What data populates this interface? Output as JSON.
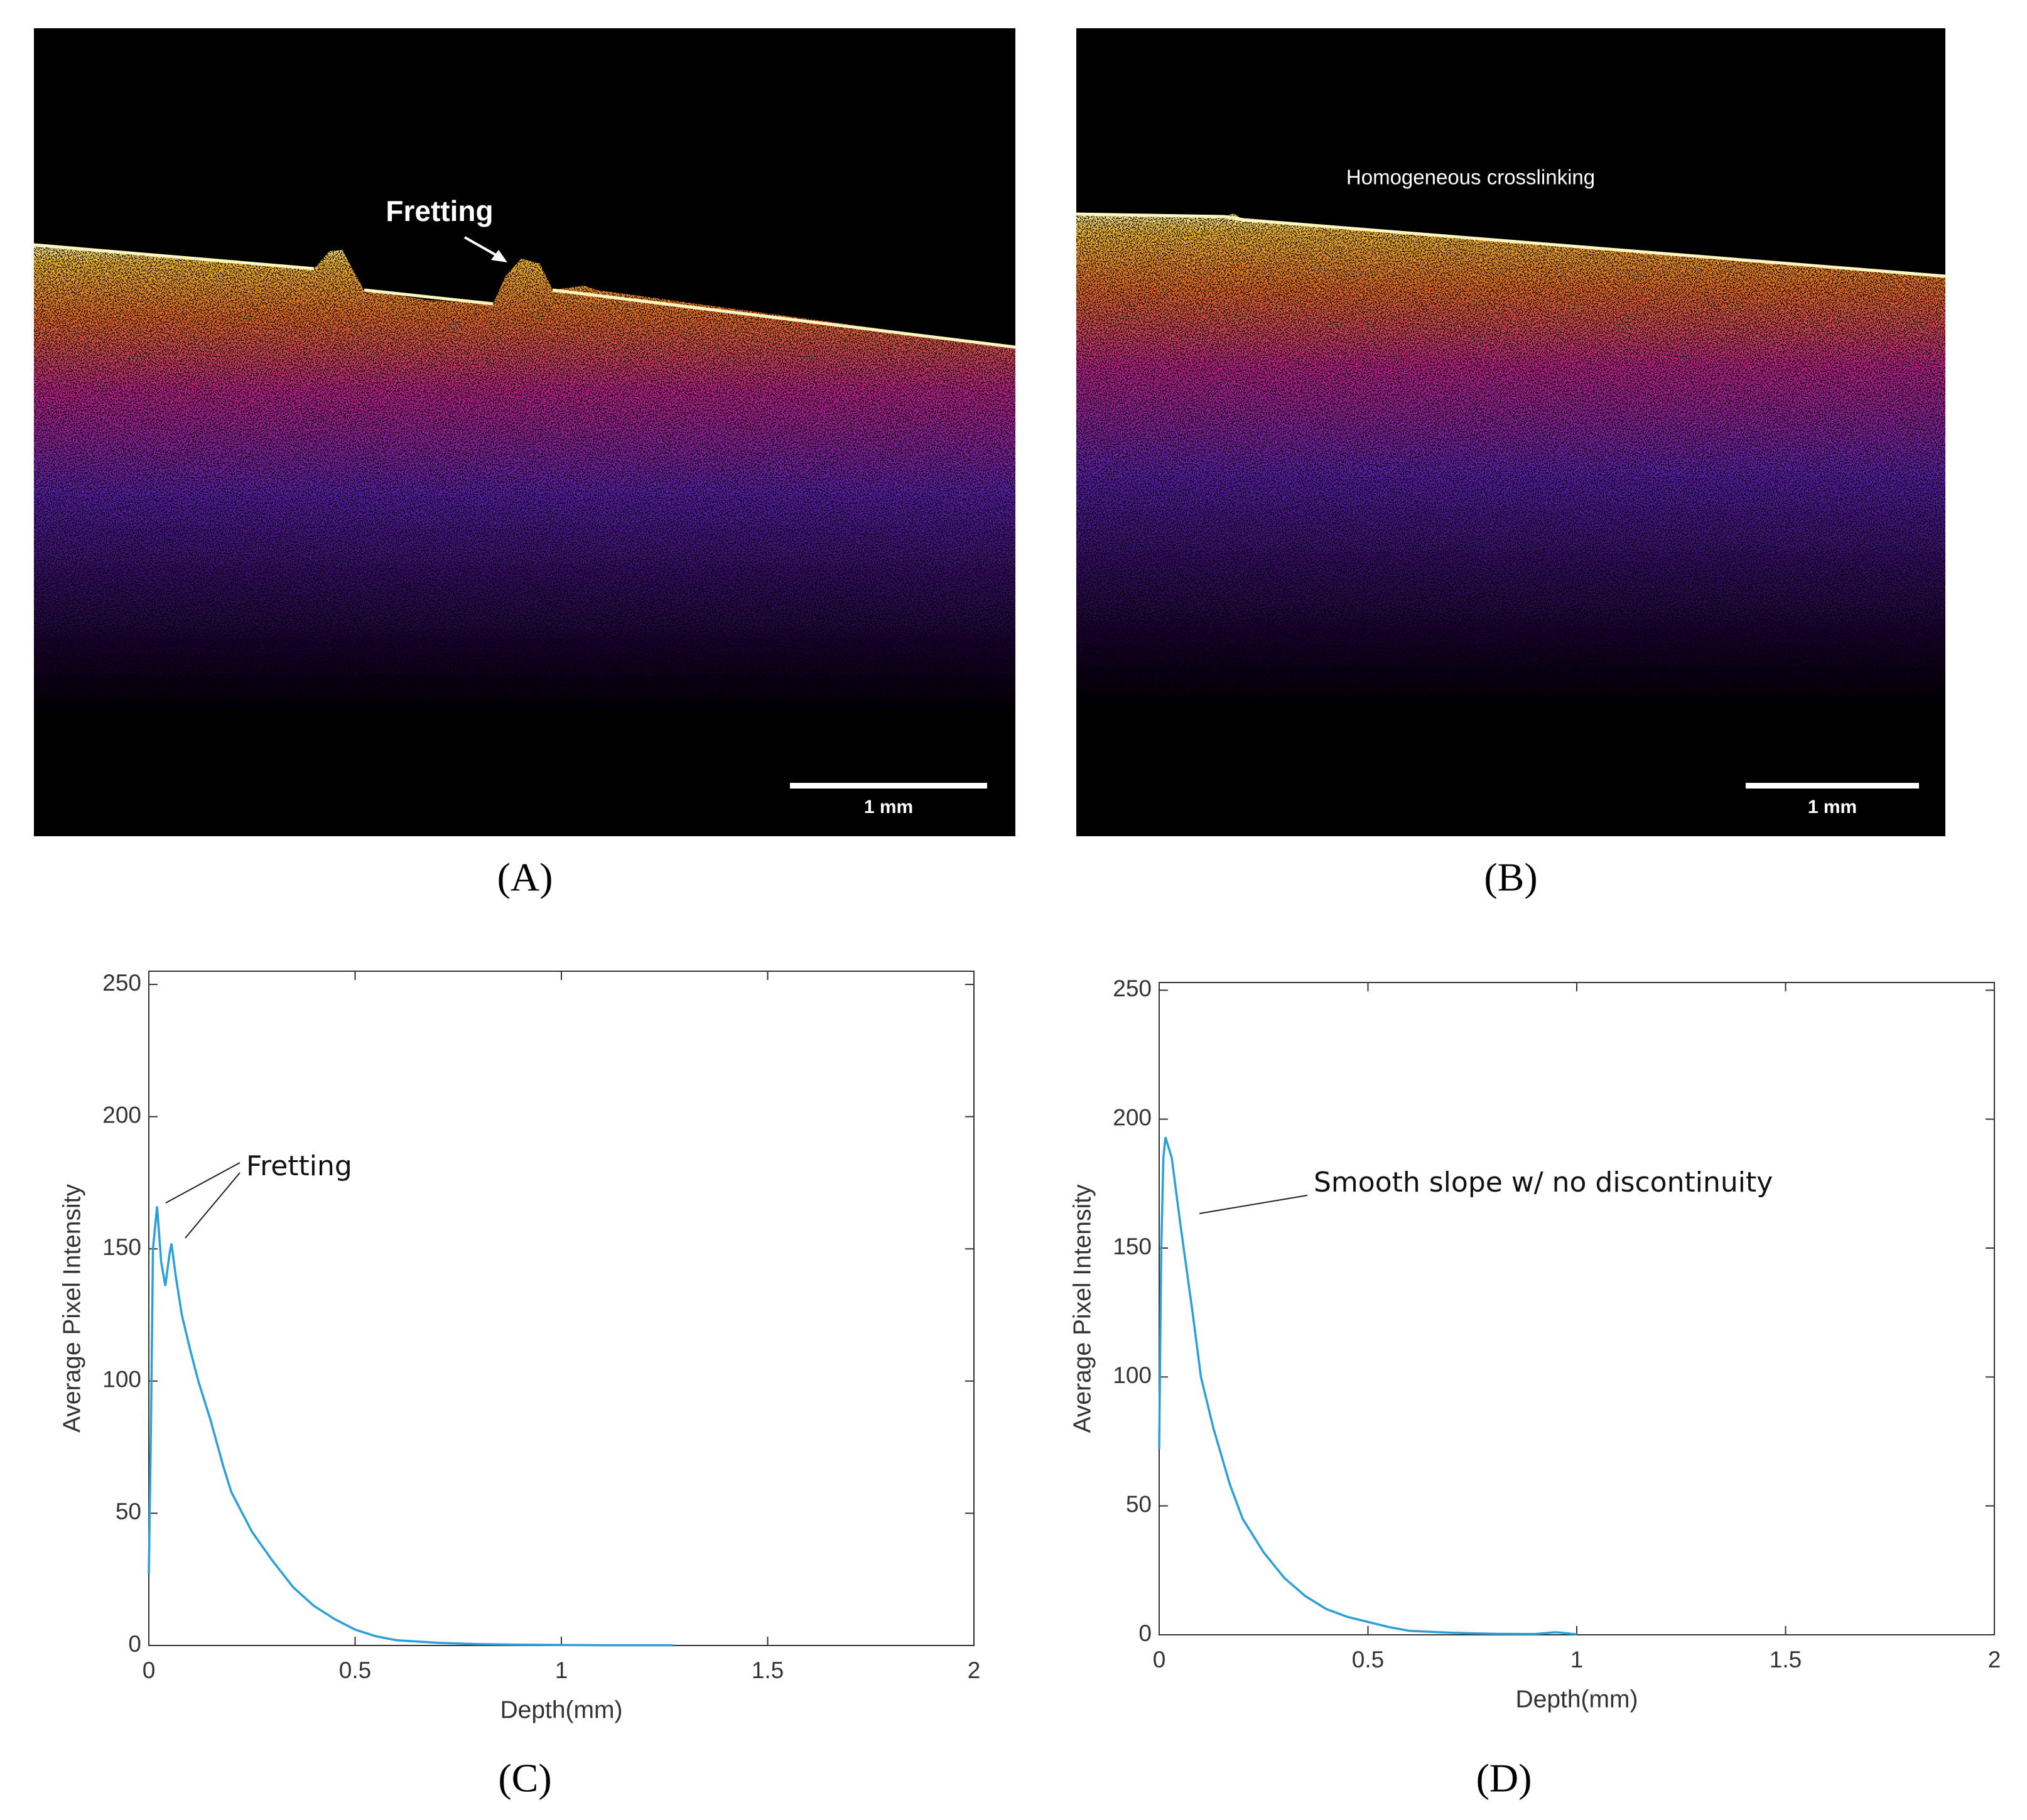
{
  "images": [
    {
      "label": "(A)",
      "annotation": "Fretting",
      "scale_bar": "1 mm"
    },
    {
      "label": "(B)",
      "annotation": "Homogeneous crosslinking",
      "scale_bar": "1 mm"
    }
  ],
  "chart_data": [
    {
      "type": "line",
      "label": "(C)",
      "xlabel": "Depth(mm)",
      "ylabel": "Average Pixel Intensity",
      "annotation": "Fretting",
      "color": "#2b9fd8",
      "x": [
        0,
        0.005,
        0.01,
        0.02,
        0.03,
        0.04,
        0.05,
        0.055,
        0.065,
        0.08,
        0.1,
        0.12,
        0.15,
        0.18,
        0.2,
        0.25,
        0.3,
        0.35,
        0.4,
        0.45,
        0.5,
        0.55,
        0.6,
        0.7,
        0.8,
        0.9,
        1,
        1.1,
        1.27
      ],
      "values": [
        27,
        80,
        150,
        166,
        145,
        136,
        148,
        152,
        140,
        125,
        112,
        100,
        85,
        68,
        58,
        43,
        32,
        22,
        15,
        10,
        6,
        3.5,
        2,
        1,
        0.5,
        0.3,
        0.2,
        0.1,
        0.1
      ],
      "xlim": [
        0,
        2
      ],
      "xticks": [
        0,
        0.5,
        1,
        1.5,
        2
      ],
      "ylim": [
        0,
        255
      ],
      "yticks": [
        0,
        50,
        100,
        150,
        200,
        250
      ]
    },
    {
      "type": "line",
      "label": "(D)",
      "xlabel": "Depth(mm)",
      "ylabel": "Average Pixel Intensity",
      "annotation": "Smooth slope w/ no discontinuity",
      "color": "#2b9fd8",
      "x": [
        0,
        0.005,
        0.01,
        0.015,
        0.03,
        0.05,
        0.08,
        0.1,
        0.13,
        0.17,
        0.2,
        0.25,
        0.3,
        0.35,
        0.4,
        0.45,
        0.5,
        0.55,
        0.6,
        0.7,
        0.8,
        0.9,
        0.95,
        1
      ],
      "values": [
        72,
        150,
        185,
        193,
        185,
        160,
        125,
        100,
        80,
        58,
        45,
        32,
        22,
        15,
        10,
        7,
        5,
        3,
        1.5,
        0.8,
        0.4,
        0.3,
        1,
        0.2
      ],
      "xlim": [
        0,
        2
      ],
      "xticks": [
        0,
        0.5,
        1,
        1.5,
        2
      ],
      "ylim": [
        0,
        253
      ],
      "yticks": [
        0,
        50,
        100,
        150,
        200,
        250
      ]
    }
  ]
}
